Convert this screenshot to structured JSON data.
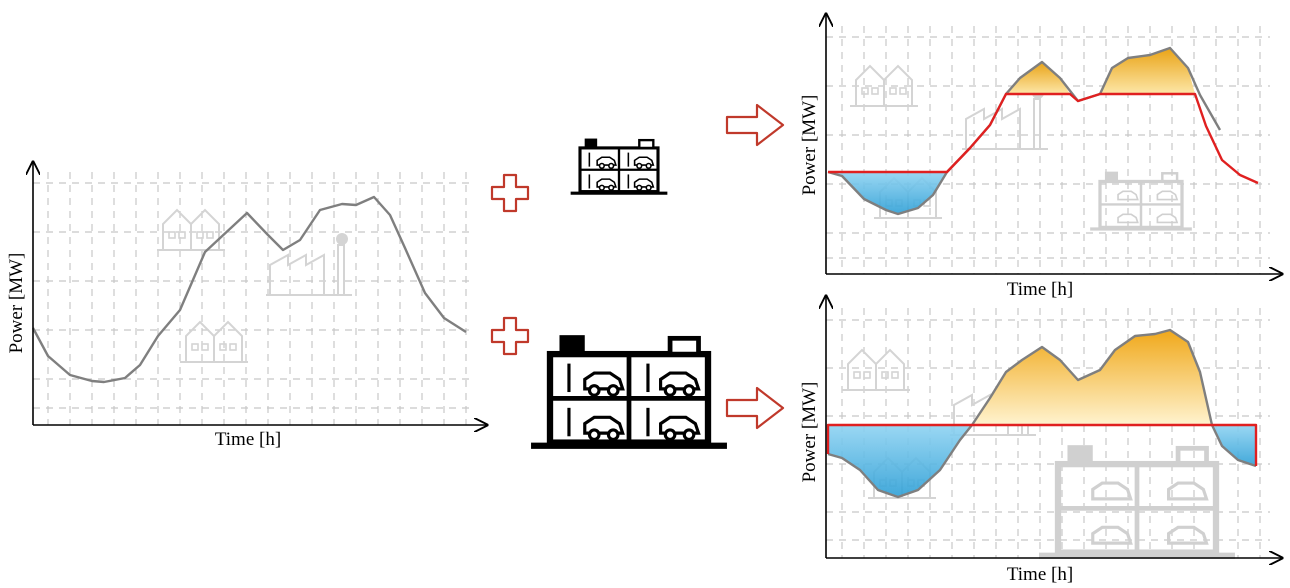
{
  "labels": {
    "time_axis": "Time [h]",
    "power_axis": "Power [MW]"
  },
  "colors": {
    "load_curve": "#7f7f7f",
    "storage_line": "#e02020",
    "charging_fill": "#49b5e8",
    "discharging_fill": "#f2b31e",
    "plus_sign": "#c0392b",
    "arrow": "#c0392b",
    "building_icon": "#000000",
    "background_icon": "#d8d8d8",
    "grid": "#c8c8c8"
  },
  "panels": [
    {
      "id": "base-load",
      "label_x": "Time [h]",
      "label_y": "Power [MW]"
    },
    {
      "id": "small-storage",
      "label_x": "Time [h]",
      "label_y": "Power [MW]"
    },
    {
      "id": "large-storage",
      "label_x": "Time [h]",
      "label_y": "Power [MW]"
    }
  ],
  "icons": {
    "small_parking_garage": "parking-garage-icon",
    "large_parking_garage": "parking-garage-icon",
    "plus": "plus-icon",
    "arrow": "arrow-right-icon",
    "houses": "houses-icon",
    "factory": "factory-icon"
  }
}
